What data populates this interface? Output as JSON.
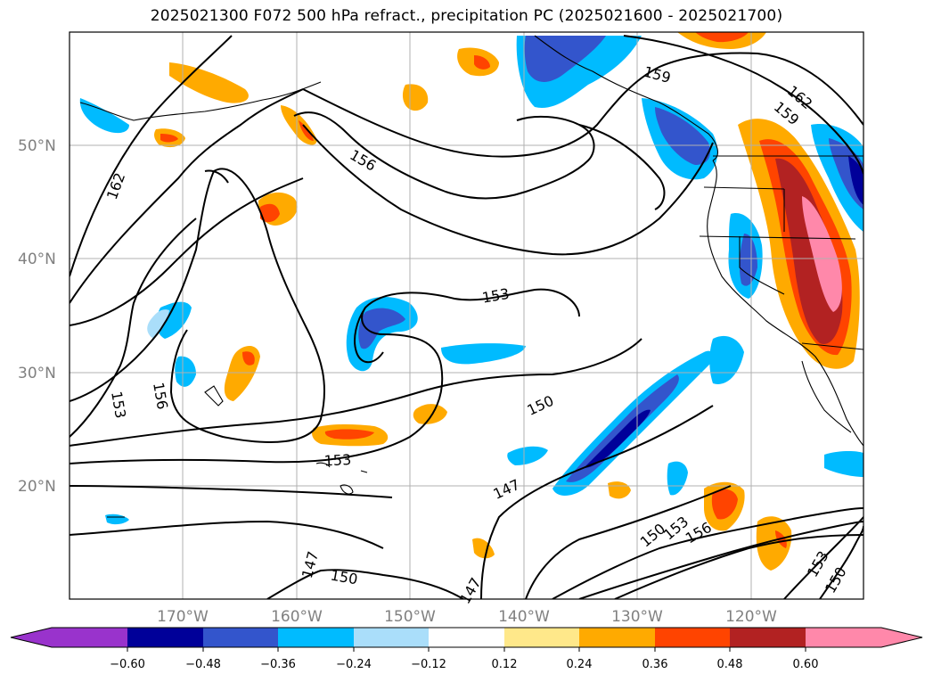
{
  "title": "2025021300 F072 500 hPa refract., precipitation PC (2025021600 - 2025021700)",
  "axes": {
    "lat_labels": [
      "50°N",
      "40°N",
      "30°N",
      "20°N"
    ],
    "lon_labels": [
      "170°W",
      "160°W",
      "150°W",
      "140°W",
      "130°W",
      "120°W"
    ]
  },
  "contour_labels": [
    "162",
    "159",
    "162",
    "159",
    "156",
    "153",
    "156",
    "153",
    "150",
    "153",
    "147",
    "150",
    "153",
    "156",
    "153",
    "150",
    "147",
    "150",
    "147"
  ],
  "colorbar": {
    "colors": [
      "#9933cc",
      "#000099",
      "#3355cc",
      "#00bbff",
      "#aadefa",
      "#ffffff",
      "#ffe88a",
      "#ffaa00",
      "#ff4400",
      "#b22222",
      "#ff88aa"
    ],
    "tick_labels": [
      "−0.60",
      "−0.48",
      "−0.36",
      "−0.24",
      "−0.12",
      "0.12",
      "0.24",
      "0.36",
      "0.48",
      "0.60"
    ]
  }
}
